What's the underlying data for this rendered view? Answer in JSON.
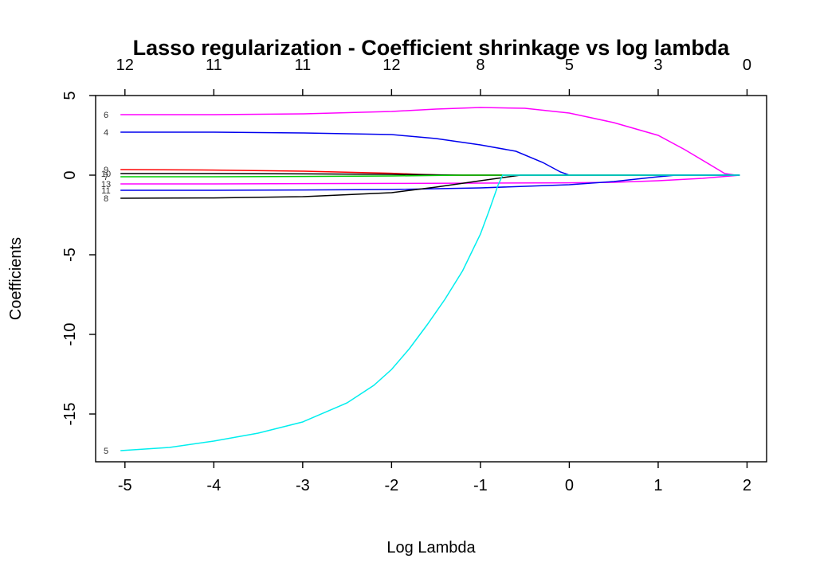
{
  "chart_data": {
    "type": "line",
    "title": "Lasso regularization - Coefficient shrinkage vs log lambda",
    "xlabel": "Log Lambda",
    "ylabel": "Coefficients",
    "xlim": [
      -5.33,
      2.22
    ],
    "ylim": [
      -18,
      5
    ],
    "x_ticks": [
      -5,
      -4,
      -3,
      -2,
      -1,
      0,
      1,
      2
    ],
    "x_tick_labels": [
      "-5",
      "-4",
      "-3",
      "-2",
      "-1",
      "0",
      "1",
      "2"
    ],
    "y_ticks": [
      5,
      0,
      -5,
      -10,
      -15
    ],
    "y_tick_labels": [
      "5",
      "0",
      "-5",
      "-10",
      "-15"
    ],
    "top_axis": {
      "positions": [
        -5,
        -4,
        -3,
        -2,
        -1,
        0,
        1,
        2
      ],
      "labels": [
        "12",
        "11",
        "11",
        "12",
        "8",
        "5",
        "3",
        "0"
      ]
    },
    "grid": false,
    "legend": "none",
    "series": [
      {
        "name": "6",
        "color": "#ff00ff",
        "x": [
          -5.05,
          -4,
          -3,
          -2,
          -1.5,
          -1,
          -0.5,
          0,
          0.5,
          1,
          1.3,
          1.6,
          1.75,
          1.85,
          1.92
        ],
        "y": [
          3.8,
          3.8,
          3.85,
          4.0,
          4.15,
          4.25,
          4.2,
          3.9,
          3.3,
          2.5,
          1.6,
          0.6,
          0.1,
          0.02,
          0
        ]
      },
      {
        "name": "4",
        "color": "#0000ee",
        "x": [
          -5.05,
          -4,
          -3,
          -2,
          -1.5,
          -1,
          -0.6,
          -0.3,
          -0.1,
          0,
          0.5,
          1.0,
          1.92
        ],
        "y": [
          2.7,
          2.7,
          2.65,
          2.55,
          2.3,
          1.9,
          1.5,
          0.8,
          0.2,
          0,
          0,
          0,
          0
        ]
      },
      {
        "name": "9",
        "color": "#ff0000",
        "x": [
          -5.05,
          -4,
          -3,
          -2,
          -1.7,
          -1.5,
          -1.3,
          1.92
        ],
        "y": [
          0.35,
          0.32,
          0.25,
          0.12,
          0.05,
          0.02,
          0,
          0
        ]
      },
      {
        "name": "10",
        "color": "#000000",
        "x": [
          -5.05,
          -4,
          -3,
          -2,
          -1.5,
          -1.2,
          1.92
        ],
        "y": [
          0.1,
          0.1,
          0.08,
          0.05,
          0.02,
          0,
          0
        ]
      },
      {
        "name": "7",
        "color": "#00cd00",
        "x": [
          -5.05,
          -4,
          -3,
          -2,
          -1.5,
          -1.2,
          1.92
        ],
        "y": [
          -0.1,
          -0.1,
          -0.08,
          -0.05,
          -0.02,
          0,
          0
        ]
      },
      {
        "name": "13",
        "color": "#ff00ff",
        "x": [
          -5.05,
          -4,
          -3,
          -2,
          -1,
          0,
          0.5,
          1,
          1.5,
          1.92
        ],
        "y": [
          -0.55,
          -0.55,
          -0.53,
          -0.52,
          -0.5,
          -0.48,
          -0.45,
          -0.35,
          -0.2,
          0
        ]
      },
      {
        "name": "11",
        "color": "#0000ee",
        "x": [
          -5.05,
          -4,
          -3,
          -2,
          -1,
          0,
          0.5,
          1.0,
          1.2,
          1.92
        ],
        "y": [
          -0.95,
          -0.95,
          -0.93,
          -0.9,
          -0.8,
          -0.6,
          -0.4,
          -0.1,
          0,
          0
        ]
      },
      {
        "name": "8",
        "color": "#000000",
        "x": [
          -5.05,
          -4,
          -3,
          -2,
          -1.5,
          -1,
          -0.55,
          0,
          1.92
        ],
        "y": [
          -1.45,
          -1.43,
          -1.35,
          -1.1,
          -0.75,
          -0.35,
          0,
          0,
          0
        ]
      },
      {
        "name": "5",
        "color": "#00eeee",
        "x": [
          -5.05,
          -4.5,
          -4,
          -3.5,
          -3,
          -2.5,
          -2.2,
          -2,
          -1.8,
          -1.6,
          -1.4,
          -1.2,
          -1,
          -0.9,
          -0.8,
          -0.75,
          -0.6,
          0,
          1,
          1.92
        ],
        "y": [
          -17.3,
          -17.1,
          -16.7,
          -16.2,
          -15.5,
          -14.3,
          -13.2,
          -12.2,
          -10.9,
          -9.4,
          -7.8,
          -6.0,
          -3.7,
          -2.2,
          -0.6,
          0,
          0,
          0,
          0,
          0
        ]
      }
    ]
  }
}
